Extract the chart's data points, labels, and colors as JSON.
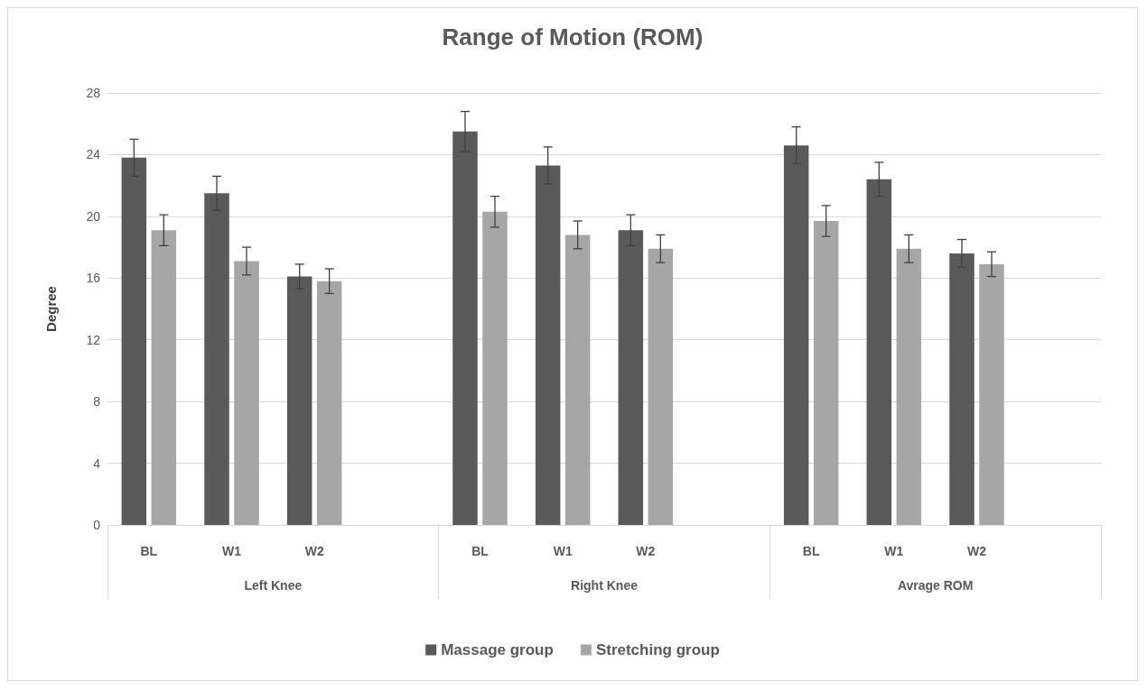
{
  "chart_data": {
    "type": "bar",
    "title": "Range of Motion (ROM)",
    "ylabel": "Degree",
    "categories": [
      "BL",
      "W1",
      "W2",
      null,
      "BL",
      "W1",
      "W2",
      null,
      "BL",
      "W1",
      "W2",
      null
    ],
    "annotations": [
      "Left Knee",
      "Right Knee",
      "Avrage ROM"
    ],
    "series": [
      {
        "name": "Massage group",
        "color": "#595959",
        "values": [
          23.8,
          21.5,
          16.1,
          null,
          25.5,
          23.3,
          19.1,
          null,
          24.6,
          22.4,
          17.6,
          null
        ],
        "errors": [
          1.2,
          1.1,
          0.8,
          null,
          1.3,
          1.2,
          1.0,
          null,
          1.2,
          1.1,
          0.9,
          null
        ]
      },
      {
        "name": "Stretching group",
        "color": "#a6a6a6",
        "values": [
          19.1,
          17.1,
          15.8,
          null,
          20.3,
          18.8,
          17.9,
          null,
          19.7,
          17.9,
          16.9,
          null
        ],
        "errors": [
          1.0,
          0.9,
          0.8,
          null,
          1.0,
          0.9,
          0.9,
          null,
          1.0,
          0.9,
          0.8,
          null
        ]
      }
    ],
    "ylim": [
      0,
      28
    ],
    "yticks": [
      0,
      4,
      8,
      12,
      16,
      20,
      24,
      28
    ],
    "grid": "y",
    "legend": "bottom"
  }
}
